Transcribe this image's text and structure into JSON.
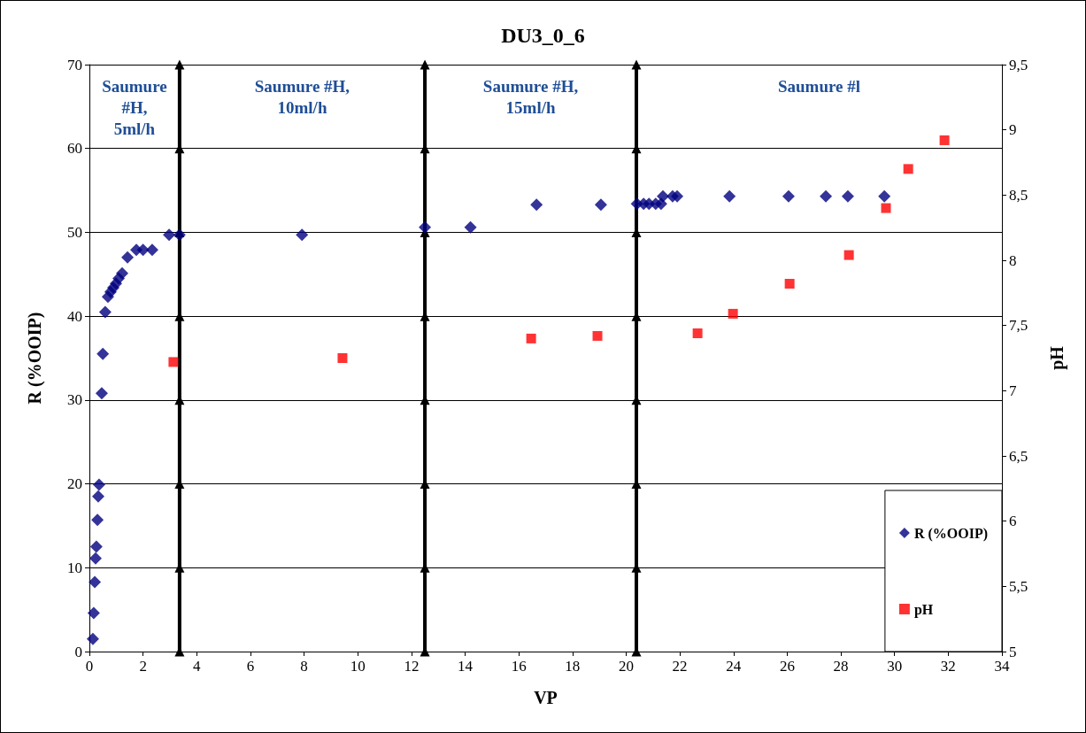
{
  "chart_data": {
    "type": "scatter",
    "title": "DU3_0_6",
    "xlabel": "VP",
    "ylabel": "R (%OOIP)",
    "y2label": "pH",
    "xlim": [
      0,
      34
    ],
    "xticks": [
      0,
      2,
      4,
      6,
      8,
      10,
      12,
      14,
      16,
      18,
      20,
      22,
      24,
      26,
      28,
      30,
      32,
      34
    ],
    "ylim": [
      0,
      70
    ],
    "yticks": [
      0,
      10,
      20,
      30,
      40,
      50,
      60,
      70
    ],
    "y2lim": [
      5,
      9.5
    ],
    "y2ticks": [
      5,
      {
        "value": 5.5,
        "label": "5,5"
      },
      6,
      {
        "value": 6.5,
        "label": "6,5"
      },
      7,
      {
        "value": 7.5,
        "label": "7,5"
      },
      8,
      {
        "value": 8.5,
        "label": "8,5"
      },
      9,
      {
        "value": 9.5,
        "label": "9,5"
      }
    ],
    "grid": "y",
    "legend": "bottom right",
    "annotations": [
      "Saumure\n#H,\n5ml/h",
      "Saumure #H,\n10ml/h",
      "Saumure #H,\n15ml/h",
      "Saumure #l"
    ],
    "series": [
      {
        "name": "R (%OOIP)",
        "color": "#000080",
        "marker": "diamond",
        "x": [
          0.13,
          0.16,
          0.2,
          0.23,
          0.26,
          0.3,
          0.33,
          0.36,
          0.46,
          0.5,
          0.59,
          0.69,
          0.79,
          0.89,
          0.99,
          1.09,
          1.22,
          1.42,
          1.75,
          2.0,
          2.34,
          2.97,
          3.36,
          7.92,
          12.5,
          14.2,
          16.66,
          19.06,
          20.4,
          20.65,
          20.85,
          21.1,
          21.3,
          21.37,
          21.73,
          21.9,
          23.85,
          26.05,
          27.44,
          28.26,
          29.62
        ],
        "values": [
          1.5,
          4.6,
          8.3,
          11.1,
          12.5,
          15.7,
          18.5,
          19.9,
          30.8,
          35.5,
          40.5,
          42.3,
          42.9,
          43.4,
          43.9,
          44.5,
          45.1,
          47.0,
          47.9,
          47.9,
          47.9,
          49.7,
          49.7,
          49.7,
          50.6,
          50.6,
          53.3,
          53.3,
          53.4,
          53.4,
          53.4,
          53.4,
          53.4,
          54.3,
          54.3,
          54.3,
          54.3,
          54.3,
          54.3,
          54.3,
          54.3
        ]
      },
      {
        "name": "pH",
        "color": "#ff0000",
        "marker": "square",
        "axis": "y2",
        "x": [
          3.13,
          9.43,
          16.46,
          18.93,
          22.66,
          23.98,
          26.09,
          28.3,
          29.68,
          30.51,
          31.86
        ],
        "values": [
          7.22,
          7.25,
          7.4,
          7.42,
          7.44,
          7.59,
          7.82,
          8.04,
          8.4,
          8.7,
          8.92
        ]
      },
      {
        "type": "line",
        "color": "#000000",
        "marker": "triangle",
        "x": [
          3.36,
          3.36,
          3.36,
          3.36,
          3.36,
          3.36,
          3.36,
          3.36
        ],
        "values": [
          0,
          10,
          20,
          30,
          40,
          50,
          60,
          70
        ]
      },
      {
        "type": "line",
        "color": "#000000",
        "marker": "triangle",
        "x": [
          12.5,
          12.5,
          12.5,
          12.5,
          12.5,
          12.5,
          12.5,
          12.5
        ],
        "values": [
          0,
          10,
          20,
          30,
          40,
          50,
          60,
          70
        ]
      },
      {
        "type": "line",
        "color": "#000000",
        "marker": "triangle",
        "x": [
          20.38,
          20.38,
          20.38,
          20.38,
          20.38,
          20.38,
          20.38,
          20.38
        ],
        "values": [
          0,
          10,
          20,
          30,
          40,
          50,
          60,
          70
        ]
      }
    ]
  }
}
